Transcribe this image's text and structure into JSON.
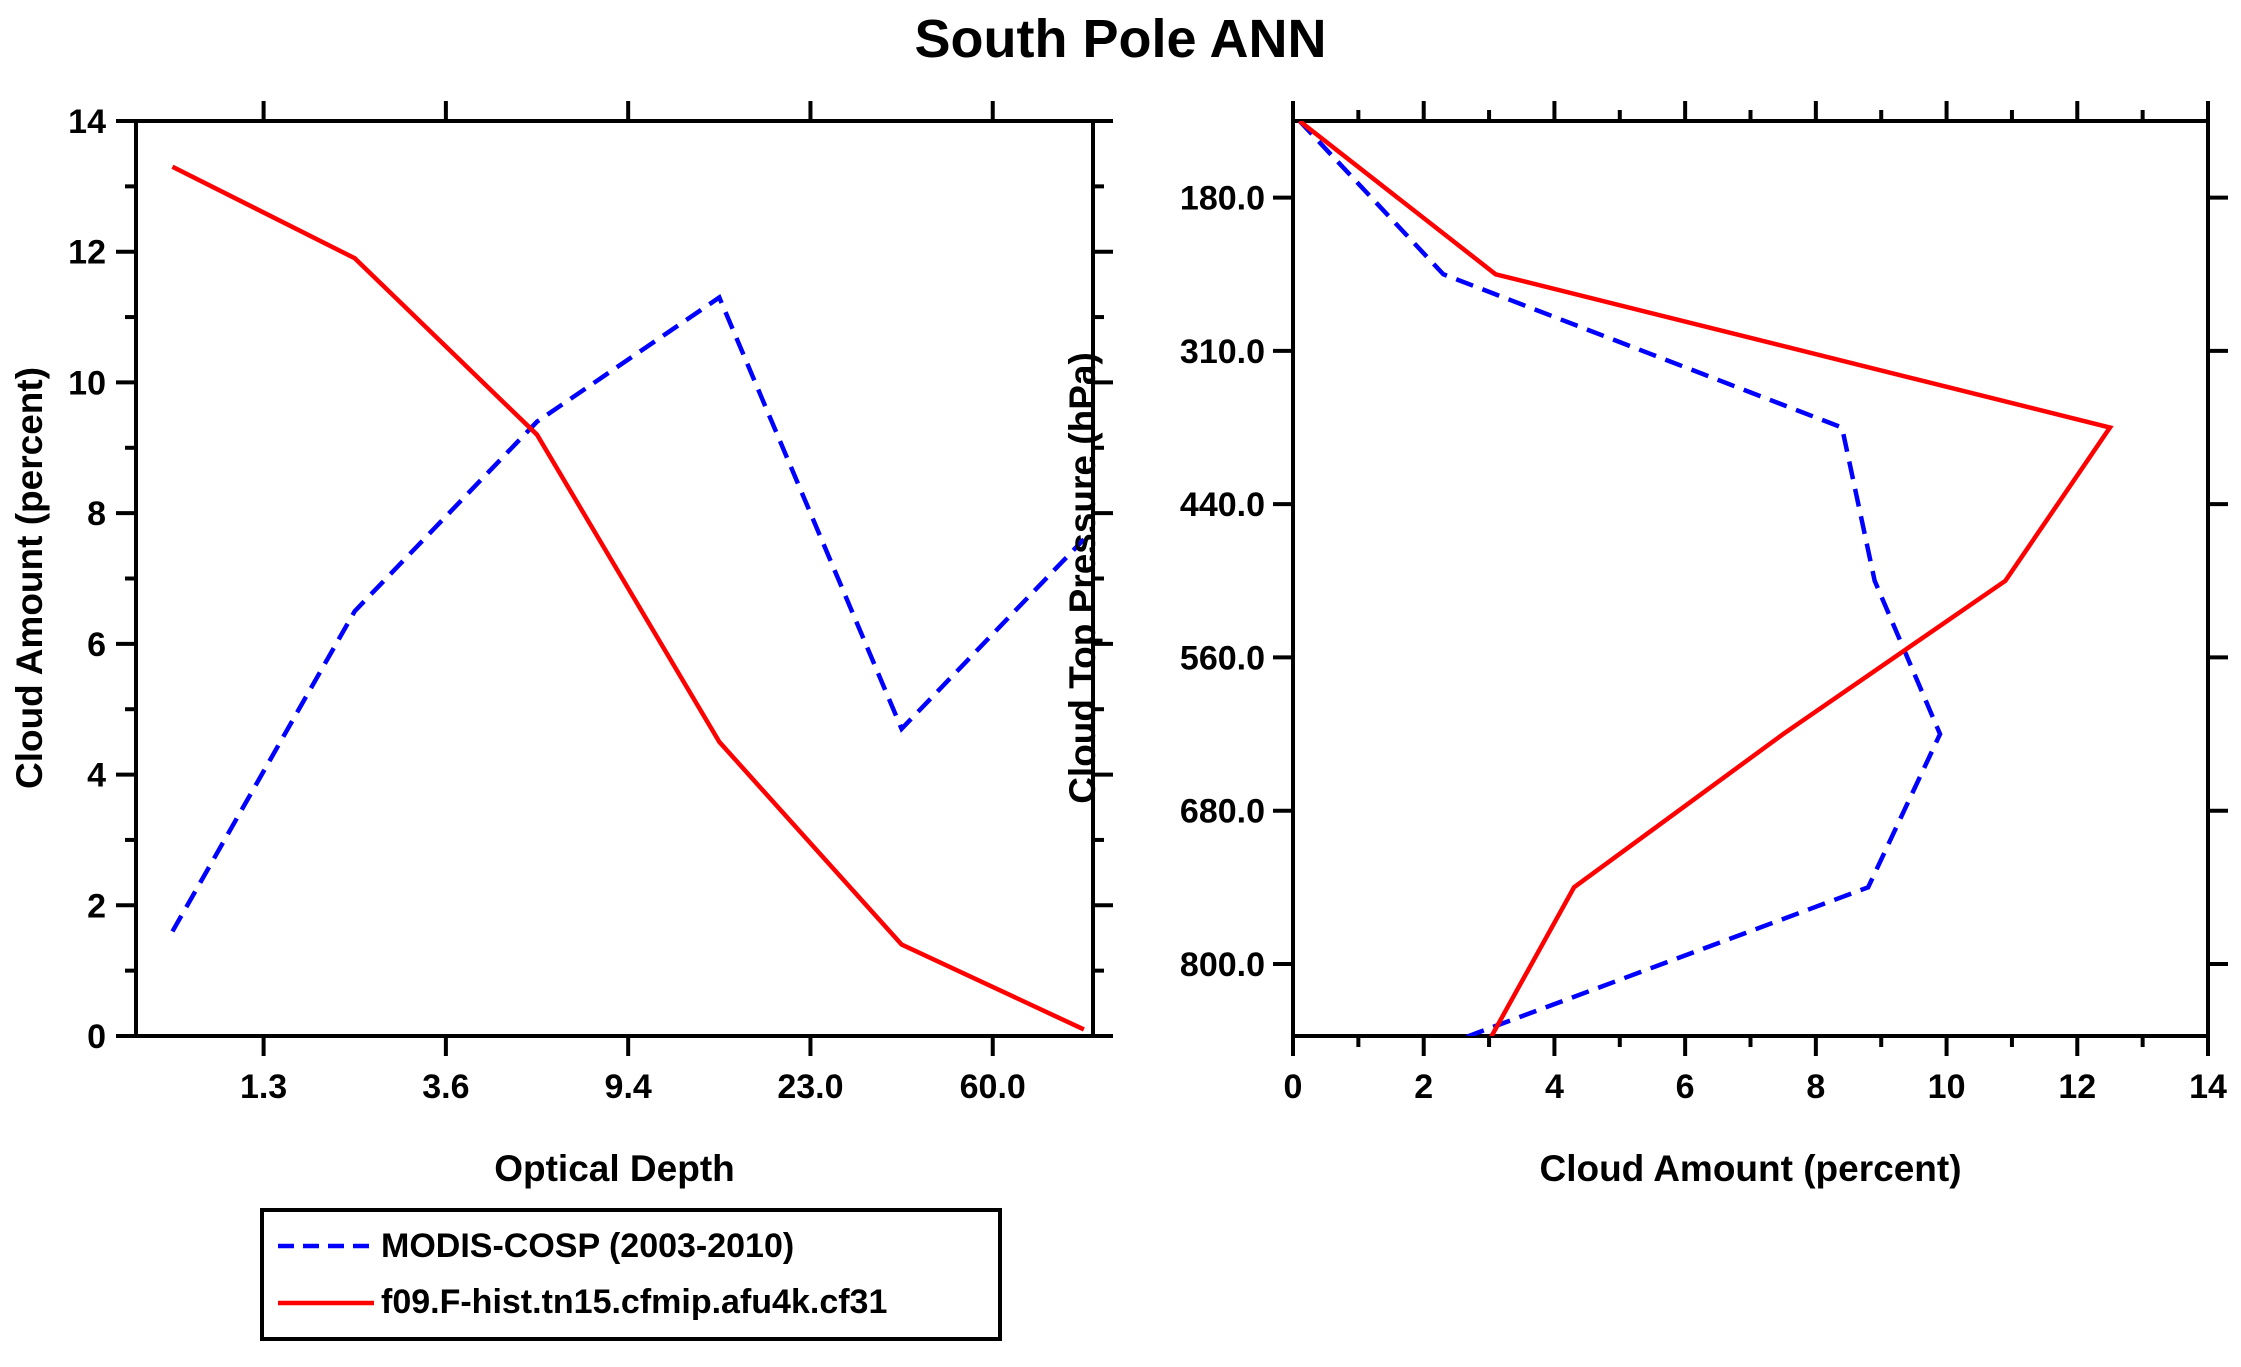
{
  "title": "South Pole ANN",
  "colors": {
    "obs": "#0000ff",
    "model": "#ff0000",
    "axis": "#000000",
    "background": "#ffffff"
  },
  "legend": {
    "position": "bottom-left",
    "entries": [
      {
        "label": "MODIS-COSP (2003-2010)",
        "color": "#0000ff",
        "style": "dashed"
      },
      {
        "label": "f09.F-hist.tn15.cfmip.afu4k.cf31",
        "color": "#ff0000",
        "style": "solid"
      }
    ]
  },
  "chart_data": [
    {
      "type": "line",
      "panel": "left",
      "xlabel": "Optical Depth",
      "ylabel": "Cloud Amount (percent)",
      "x_axis": "categorical optical-depth bins; tick labels mark bin boundaries",
      "x_tick_labels": [
        "1.3",
        "3.6",
        "9.4",
        "23.0",
        "60.0"
      ],
      "ylim": [
        0,
        14
      ],
      "y_ticks": [
        0,
        2,
        4,
        6,
        8,
        10,
        12,
        14
      ],
      "grid": false,
      "series": [
        {
          "name": "MODIS-COSP (2003-2010)",
          "color": "#0000ff",
          "style": "dashed",
          "values": [
            1.6,
            6.5,
            9.4,
            11.3,
            4.7,
            7.6
          ]
        },
        {
          "name": "f09.F-hist.tn15.cfmip.afu4k.cf31",
          "color": "#ff0000",
          "style": "solid",
          "values": [
            13.3,
            11.9,
            9.2,
            4.5,
            1.4,
            0.1
          ]
        }
      ]
    },
    {
      "type": "line",
      "panel": "right",
      "xlabel": "Cloud Amount (percent)",
      "ylabel": "Cloud Top Pressure (hPa)",
      "y_axis": "categorical pressure bins, pressure increasing downward; tick labels mark bin boundaries",
      "y_tick_labels": [
        "180.0",
        "310.0",
        "440.0",
        "560.0",
        "680.0",
        "800.0"
      ],
      "xlim": [
        0,
        14
      ],
      "x_ticks": [
        0,
        2,
        4,
        6,
        8,
        10,
        12,
        14
      ],
      "grid": false,
      "series": [
        {
          "name": "MODIS-COSP (2003-2010)",
          "color": "#0000ff",
          "style": "dashed",
          "values": [
            0.1,
            2.3,
            8.4,
            8.9,
            9.9,
            8.8,
            2.5
          ]
        },
        {
          "name": "f09.F-hist.tn15.cfmip.afu4k.cf31",
          "color": "#ff0000",
          "style": "solid",
          "values": [
            0.1,
            3.1,
            12.5,
            10.9,
            7.5,
            4.3,
            3.0
          ]
        }
      ]
    }
  ]
}
